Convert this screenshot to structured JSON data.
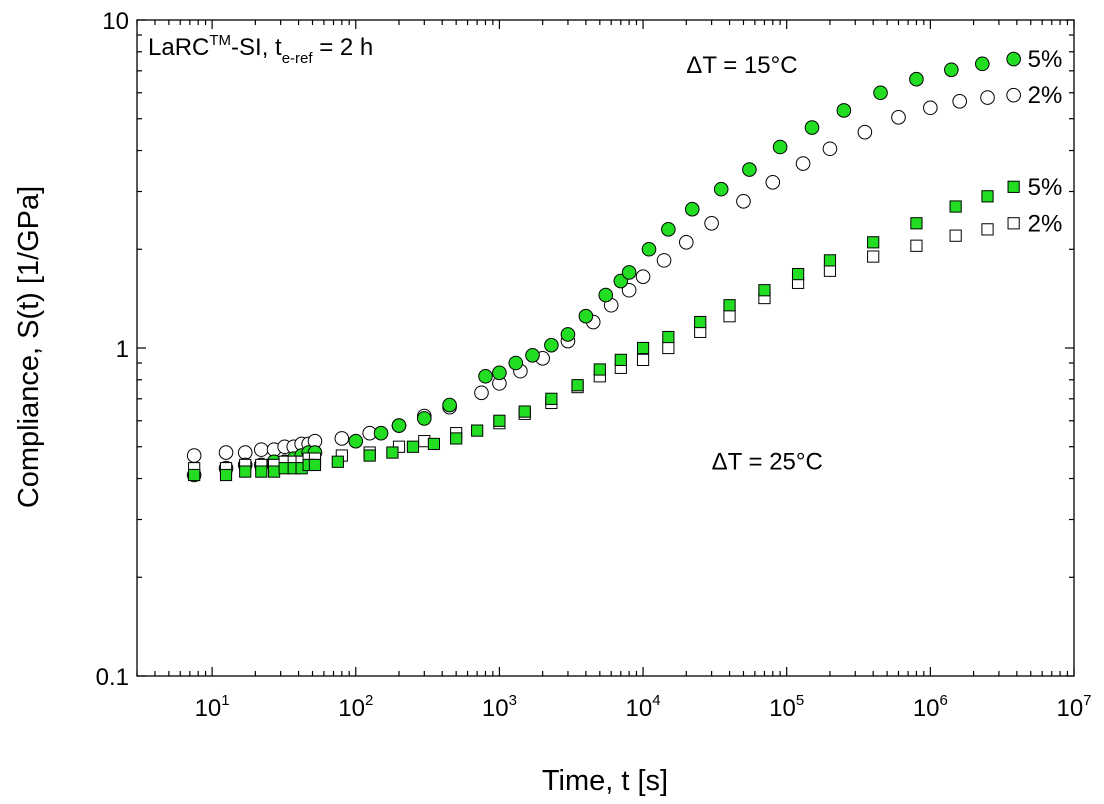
{
  "chart_data": {
    "type": "scatter",
    "xscale": "log",
    "yscale": "log",
    "xlim": [
      3,
      10000000
    ],
    "ylim": [
      0.1,
      10
    ],
    "xlabel": "Time, t [s]",
    "ylabel": "Compliance, S(t) [1/GPa]",
    "x_ticks": [
      10,
      100,
      1000,
      10000,
      100000,
      1000000,
      10000000
    ],
    "x_tick_base": "10",
    "x_tick_exponents": [
      "1",
      "2",
      "3",
      "4",
      "5",
      "6",
      "7"
    ],
    "y_ticks": [
      0.1,
      1,
      10
    ],
    "y_tick_labels": [
      "0.1",
      "1",
      "10"
    ],
    "grid": false,
    "annotation": {
      "text1": "LaRC",
      "sup1": "TM",
      "text2": "-SI,  t",
      "sub": "e-ref",
      "text3": " = 2 h"
    },
    "group_labels": [
      {
        "text": "ΔT = 15°C",
        "x": 20000,
        "y": 7.3
      },
      {
        "text": "ΔT = 25°C",
        "x": 30000,
        "y": 0.45
      }
    ],
    "series_labels": [
      {
        "text": "5%",
        "x": 3800000,
        "y": 7.6
      },
      {
        "text": "2%",
        "x": 3800000,
        "y": 5.9
      },
      {
        "text": "5%",
        "x": 3800000,
        "y": 3.1
      },
      {
        "text": "2%",
        "x": 3800000,
        "y": 2.4
      }
    ],
    "series": [
      {
        "group": "ΔT = 15°C",
        "label": "2%",
        "marker": "circle",
        "fill": "#ffffff",
        "points": [
          [
            7.5,
            0.47
          ],
          [
            12.5,
            0.48
          ],
          [
            17,
            0.48
          ],
          [
            22,
            0.49
          ],
          [
            27,
            0.49
          ],
          [
            32,
            0.5
          ],
          [
            37,
            0.5
          ],
          [
            42,
            0.51
          ],
          [
            47,
            0.51
          ],
          [
            52,
            0.52
          ],
          [
            80,
            0.53
          ],
          [
            125,
            0.55
          ],
          [
            200,
            0.58
          ],
          [
            300,
            0.62
          ],
          [
            450,
            0.66
          ],
          [
            750,
            0.73
          ],
          [
            1000,
            0.78
          ],
          [
            1400,
            0.85
          ],
          [
            2000,
            0.93
          ],
          [
            3000,
            1.05
          ],
          [
            4500,
            1.2
          ],
          [
            6000,
            1.35
          ],
          [
            8000,
            1.5
          ],
          [
            10000,
            1.65
          ],
          [
            14000,
            1.85
          ],
          [
            20000,
            2.1
          ],
          [
            30000,
            2.4
          ],
          [
            50000,
            2.8
          ],
          [
            80000,
            3.2
          ],
          [
            130000,
            3.65
          ],
          [
            200000,
            4.05
          ],
          [
            350000,
            4.55
          ],
          [
            600000,
            5.05
          ],
          [
            1000000,
            5.4
          ],
          [
            1600000,
            5.65
          ],
          [
            2500000,
            5.8
          ],
          [
            3800000,
            5.9
          ]
        ]
      },
      {
        "group": "ΔT = 15°C",
        "label": "5%",
        "marker": "circle",
        "fill": "#22dd22",
        "points": [
          [
            7.5,
            0.41
          ],
          [
            12.5,
            0.43
          ],
          [
            17,
            0.44
          ],
          [
            22,
            0.44
          ],
          [
            27,
            0.45
          ],
          [
            32,
            0.45
          ],
          [
            37,
            0.46
          ],
          [
            42,
            0.47
          ],
          [
            47,
            0.48
          ],
          [
            52,
            0.48
          ],
          [
            100,
            0.52
          ],
          [
            150,
            0.55
          ],
          [
            200,
            0.58
          ],
          [
            300,
            0.61
          ],
          [
            450,
            0.67
          ],
          [
            800,
            0.82
          ],
          [
            1000,
            0.84
          ],
          [
            1300,
            0.9
          ],
          [
            1700,
            0.95
          ],
          [
            2300,
            1.02
          ],
          [
            3000,
            1.1
          ],
          [
            4000,
            1.25
          ],
          [
            5500,
            1.45
          ],
          [
            7000,
            1.6
          ],
          [
            8000,
            1.7
          ],
          [
            11000,
            2.0
          ],
          [
            15000,
            2.3
          ],
          [
            22000,
            2.65
          ],
          [
            35000,
            3.05
          ],
          [
            55000,
            3.5
          ],
          [
            90000,
            4.1
          ],
          [
            150000,
            4.7
          ],
          [
            250000,
            5.3
          ],
          [
            450000,
            6.0
          ],
          [
            800000,
            6.6
          ],
          [
            1400000,
            7.05
          ],
          [
            2300000,
            7.35
          ],
          [
            3800000,
            7.6
          ]
        ]
      },
      {
        "group": "ΔT = 25°C",
        "label": "2%",
        "marker": "square",
        "fill": "#ffffff",
        "points": [
          [
            7.5,
            0.43
          ],
          [
            12.5,
            0.43
          ],
          [
            17,
            0.44
          ],
          [
            22,
            0.44
          ],
          [
            27,
            0.44
          ],
          [
            32,
            0.45
          ],
          [
            37,
            0.45
          ],
          [
            42,
            0.45
          ],
          [
            47,
            0.46
          ],
          [
            52,
            0.46
          ],
          [
            80,
            0.47
          ],
          [
            125,
            0.48
          ],
          [
            200,
            0.5
          ],
          [
            300,
            0.52
          ],
          [
            500,
            0.55
          ],
          [
            1000,
            0.59
          ],
          [
            1500,
            0.63
          ],
          [
            2300,
            0.68
          ],
          [
            3500,
            0.76
          ],
          [
            5000,
            0.82
          ],
          [
            7000,
            0.87
          ],
          [
            10000,
            0.92
          ],
          [
            15000,
            1.0
          ],
          [
            25000,
            1.12
          ],
          [
            40000,
            1.25
          ],
          [
            70000,
            1.42
          ],
          [
            120000,
            1.58
          ],
          [
            200000,
            1.72
          ],
          [
            400000,
            1.9
          ],
          [
            800000,
            2.05
          ],
          [
            1500000,
            2.2
          ],
          [
            2500000,
            2.3
          ],
          [
            3800000,
            2.4
          ]
        ]
      },
      {
        "group": "ΔT = 25°C",
        "label": "5%",
        "marker": "square",
        "fill": "#22dd22",
        "points": [
          [
            7.5,
            0.41
          ],
          [
            12.5,
            0.41
          ],
          [
            17,
            0.42
          ],
          [
            22,
            0.42
          ],
          [
            27,
            0.42
          ],
          [
            32,
            0.43
          ],
          [
            37,
            0.43
          ],
          [
            42,
            0.43
          ],
          [
            47,
            0.44
          ],
          [
            52,
            0.44
          ],
          [
            75,
            0.45
          ],
          [
            125,
            0.47
          ],
          [
            180,
            0.48
          ],
          [
            250,
            0.5
          ],
          [
            350,
            0.51
          ],
          [
            500,
            0.53
          ],
          [
            700,
            0.56
          ],
          [
            1000,
            0.6
          ],
          [
            1500,
            0.64
          ],
          [
            2300,
            0.7
          ],
          [
            3500,
            0.77
          ],
          [
            5000,
            0.86
          ],
          [
            7000,
            0.92
          ],
          [
            10000,
            1.0
          ],
          [
            15000,
            1.08
          ],
          [
            25000,
            1.2
          ],
          [
            40000,
            1.35
          ],
          [
            70000,
            1.5
          ],
          [
            120000,
            1.68
          ],
          [
            200000,
            1.85
          ],
          [
            400000,
            2.1
          ],
          [
            800000,
            2.4
          ],
          [
            1500000,
            2.7
          ],
          [
            2500000,
            2.9
          ],
          [
            3800000,
            3.1
          ]
        ]
      }
    ]
  }
}
